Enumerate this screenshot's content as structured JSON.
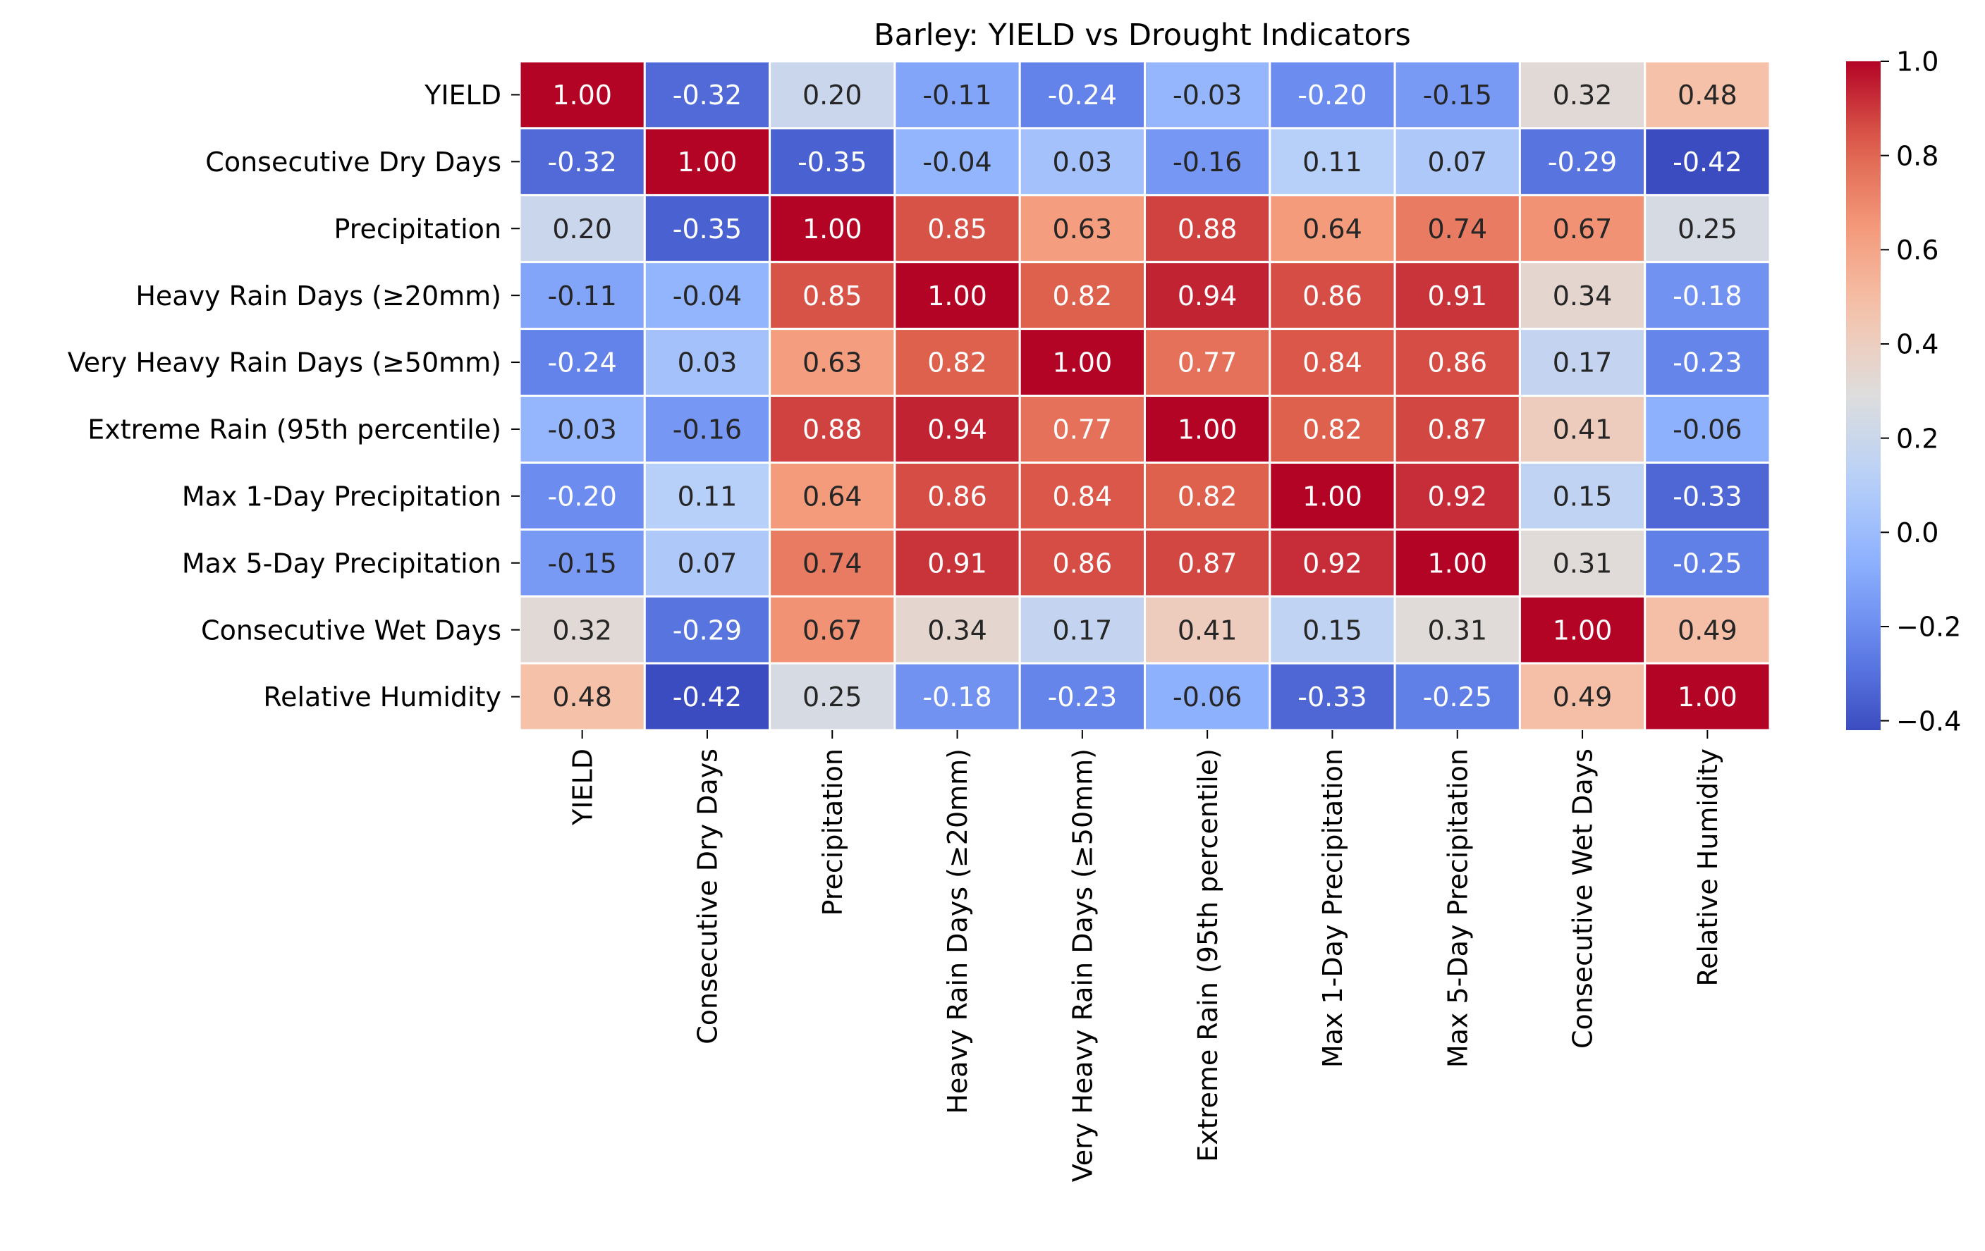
{
  "chart_data": {
    "type": "heatmap",
    "title": "Barley: YIELD vs Drought Indicators",
    "labels": [
      "YIELD",
      "Consecutive Dry Days",
      "Precipitation",
      "Heavy Rain Days (≥20mm)",
      "Very Heavy Rain Days (≥50mm)",
      "Extreme Rain (95th percentile)",
      "Max 1-Day Precipitation",
      "Max 5-Day Precipitation",
      "Consecutive Wet Days",
      "Relative Humidity"
    ],
    "matrix": [
      [
        1.0,
        -0.32,
        0.2,
        -0.11,
        -0.24,
        -0.03,
        -0.2,
        -0.15,
        0.32,
        0.48
      ],
      [
        -0.32,
        1.0,
        -0.35,
        -0.04,
        0.03,
        -0.16,
        0.11,
        0.07,
        -0.29,
        -0.42
      ],
      [
        0.2,
        -0.35,
        1.0,
        0.85,
        0.63,
        0.88,
        0.64,
        0.74,
        0.67,
        0.25
      ],
      [
        -0.11,
        -0.04,
        0.85,
        1.0,
        0.82,
        0.94,
        0.86,
        0.91,
        0.34,
        -0.18
      ],
      [
        -0.24,
        0.03,
        0.63,
        0.82,
        1.0,
        0.77,
        0.84,
        0.86,
        0.17,
        -0.23
      ],
      [
        -0.03,
        -0.16,
        0.88,
        0.94,
        0.77,
        1.0,
        0.82,
        0.87,
        0.41,
        -0.06
      ],
      [
        -0.2,
        0.11,
        0.64,
        0.86,
        0.84,
        0.82,
        1.0,
        0.92,
        0.15,
        -0.33
      ],
      [
        -0.15,
        0.07,
        0.74,
        0.91,
        0.86,
        0.87,
        0.92,
        1.0,
        0.31,
        -0.25
      ],
      [
        0.32,
        -0.29,
        0.67,
        0.34,
        0.17,
        0.41,
        0.15,
        0.31,
        1.0,
        0.49
      ],
      [
        0.48,
        -0.42,
        0.25,
        -0.18,
        -0.23,
        -0.06,
        -0.33,
        -0.25,
        0.49,
        1.0
      ]
    ],
    "colormap": "coolwarm",
    "vmin": -0.42,
    "vmax": 1.0,
    "colorbar_ticks": [
      1.0,
      0.8,
      0.6,
      0.4,
      0.2,
      0.0,
      -0.2,
      -0.4
    ],
    "colorbar_tick_labels": [
      "1.0",
      "0.8",
      "0.6",
      "0.4",
      "0.2",
      "0.0",
      "−0.2",
      "−0.4"
    ],
    "annotation_format": "two decimals"
  }
}
